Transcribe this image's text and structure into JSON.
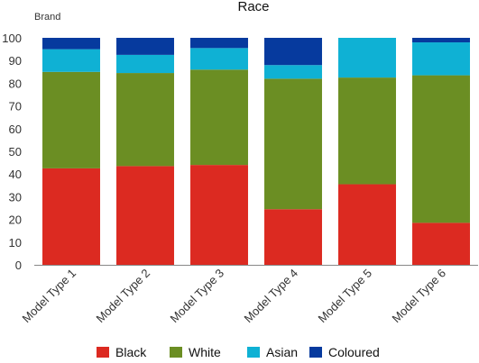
{
  "chart_data": {
    "type": "bar",
    "stacked": true,
    "title": "Race",
    "ylabel": "Brand",
    "xlabel": "",
    "ylim": [
      0,
      100
    ],
    "yticks": [
      0,
      10,
      20,
      30,
      40,
      50,
      60,
      70,
      80,
      90,
      100
    ],
    "categories": [
      "Model Type 1",
      "Model Type 2",
      "Model Type 3",
      "Model Type 4",
      "Model Type 5",
      "Model Type 6"
    ],
    "series": [
      {
        "name": "Black",
        "color": "#DC2A21",
        "values": [
          42.5,
          43.5,
          44,
          24.5,
          35.5,
          18.5
        ]
      },
      {
        "name": "White",
        "color": "#6B8E23",
        "values": [
          42.5,
          41,
          42,
          57.5,
          47,
          65
        ]
      },
      {
        "name": "Asian",
        "color": "#0FB1D4",
        "values": [
          10,
          8,
          9.5,
          6,
          17.5,
          14.5
        ]
      },
      {
        "name": "Coloured",
        "color": "#063A9E",
        "values": [
          5,
          7.5,
          4.5,
          12,
          0,
          2
        ]
      }
    ],
    "legend_position": "bottom",
    "grid": false
  }
}
